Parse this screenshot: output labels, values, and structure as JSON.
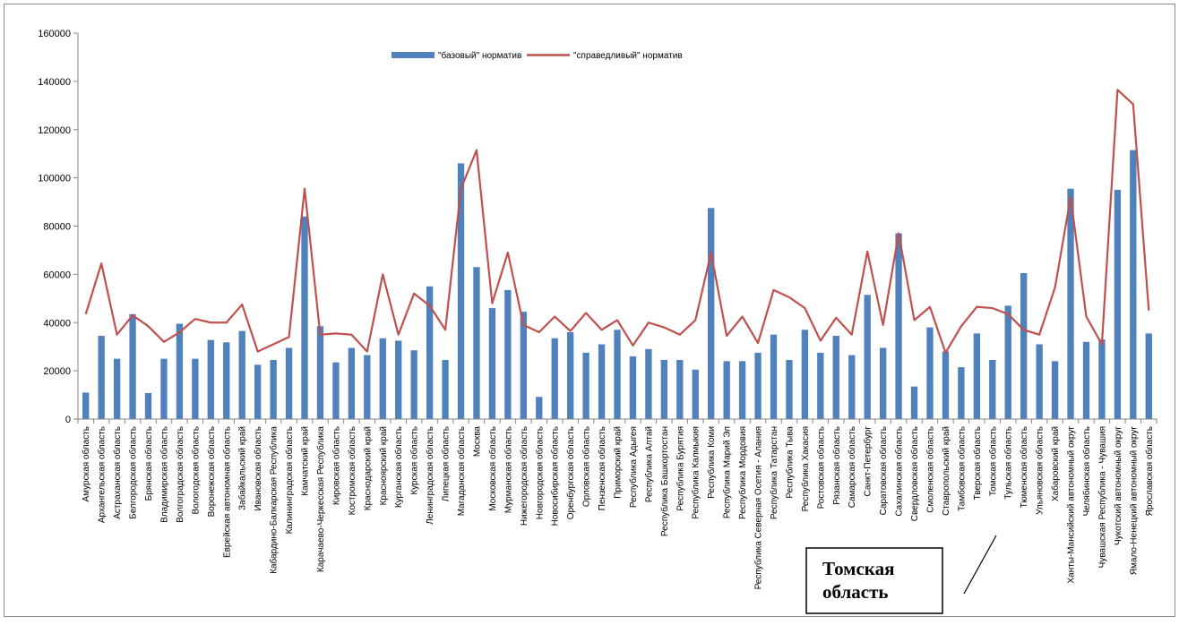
{
  "chart_data": {
    "type": "bar",
    "ylim": [
      0,
      160000
    ],
    "yticks": [
      "0",
      "20000",
      "40000",
      "60000",
      "80000",
      "100000",
      "120000",
      "140000",
      "160000"
    ],
    "legend_placement": "top-center",
    "grid": false,
    "categories": [
      "Амурская область",
      "Архангельская область",
      "Астраханская область",
      "Белгородская область",
      "Брянская область",
      "Владимирская область",
      "Волгоградская область",
      "Вологодская область",
      "Воронежская область",
      "Еврейская автономная область",
      "Забайкальский край",
      "Ивановская область",
      "Кабардино-Балкарская Республика",
      "Калининградская область",
      "Камчатский край",
      "Карачаево-Черкесская Республика",
      "Кировская область",
      "Костромская область",
      "Краснодарский край",
      "Красноярский край",
      "Курганская область",
      "Курская область",
      "Ленинградская область",
      "Липецкая область",
      "Магаданская область",
      "Москва",
      "Московская область",
      "Мурманская область",
      "Нижегородская область",
      "Новгородская область",
      "Новосибирская область",
      "Оренбургская область",
      "Орловская область",
      "Пензенская область",
      "Приморский край",
      "Республика Адыгея",
      "Республика Алтай",
      "Республика Башкортостан",
      "Республика Бурятия",
      "Республика Калмыкия",
      "Республика Коми",
      "Республика Марий Эл",
      "Республика Мордовия",
      "Республика Северная Осетия - Алания",
      "Республика Татарстан",
      "Республика Тыва",
      "Республика Хакасия",
      "Ростовская область",
      "Рязанская область",
      "Самарская область",
      "Санкт-Петербург",
      "Саратовская область",
      "Сахалинская область",
      "Свердловская область",
      "Смоленская область",
      "Ставропольский край",
      "Тамбовская область",
      "Тверская область",
      "Томская область",
      "Тульская область",
      "Тюменская область",
      "Ульяновская область",
      "Хабаровский край",
      "Ханты-Мансийский автономный округ",
      "Челябинская область",
      "Чувашская Республика - Чувашия",
      "Чукотский автономный округ",
      "Ямало-Ненецкий автономный округ",
      "Ярославская область"
    ],
    "series": [
      {
        "name": "\"базовый\" норматив",
        "kind": "bar",
        "color": "#4f81bd",
        "values": [
          11000,
          34500,
          25000,
          43500,
          10800,
          25000,
          39500,
          25000,
          32800,
          31800,
          36500,
          22500,
          24500,
          29500,
          84000,
          38500,
          23500,
          29500,
          26500,
          33500,
          32500,
          28500,
          55000,
          24500,
          106000,
          63000,
          46000,
          53500,
          44500,
          9200,
          33500,
          36000,
          27500,
          31000,
          37000,
          26000,
          29000,
          24500,
          24500,
          20500,
          87500,
          24000,
          24000,
          27500,
          35000,
          24500,
          37000,
          27500,
          34500,
          26500,
          51500,
          29500,
          77000,
          13500,
          38000,
          28000,
          21500,
          35500,
          24500,
          47000,
          60500,
          31000,
          24000,
          95500,
          32000,
          33000,
          95000,
          111500,
          35500
        ]
      },
      {
        "name": "\"справедливый\" норматив",
        "kind": "line",
        "color": "#c0504d",
        "values": [
          43500,
          64500,
          35000,
          43000,
          38500,
          32000,
          36000,
          41500,
          40000,
          40000,
          47500,
          28000,
          31000,
          34000,
          95500,
          35000,
          35500,
          35000,
          28000,
          60000,
          35000,
          52000,
          47000,
          37000,
          95500,
          111500,
          48000,
          69000,
          39000,
          36000,
          42500,
          36500,
          44000,
          37000,
          41000,
          30500,
          40000,
          38000,
          35000,
          41000,
          69000,
          34500,
          42500,
          31500,
          53500,
          50500,
          46000,
          32500,
          42000,
          35000,
          69500,
          39000,
          77000,
          41000,
          46500,
          27500,
          38500,
          46500,
          46000,
          43500,
          37000,
          35000,
          54500,
          92000,
          42500,
          31000,
          136500,
          130500,
          45000
        ]
      }
    ]
  },
  "annotation": {
    "line1": "Томская",
    "line2": "область"
  }
}
